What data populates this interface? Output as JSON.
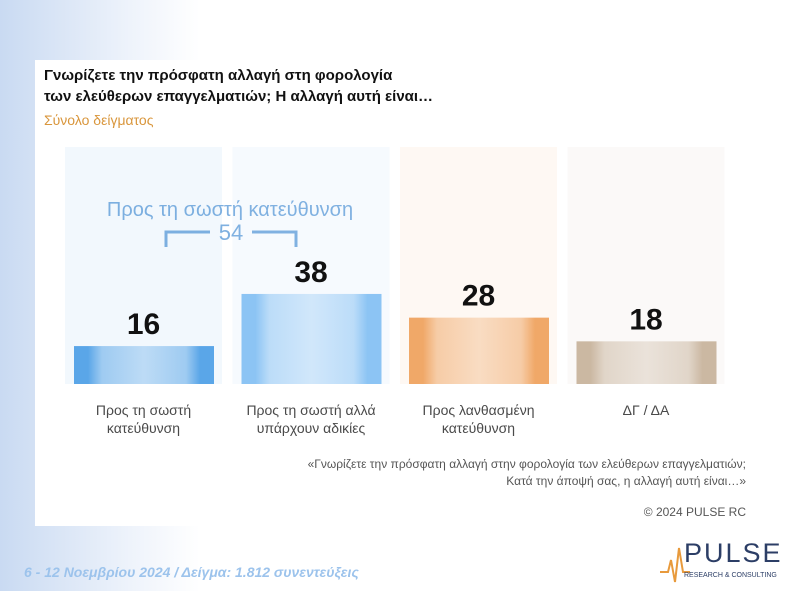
{
  "chart_data": {
    "type": "bar",
    "title": [
      "Γνωρίζετε την πρόσφατη αλλαγή στη φορολογία",
      "των ελεύθερων επαγγελματιών; Η αλλαγή αυτή είναι…"
    ],
    "subtitle": "Σύνολο δείγματος",
    "categories": [
      "Προς τη σωστή κατεύθυνση",
      "Προς τη σωστή αλλά υπάρχουν αδικίες",
      "Προς λανθασμένη κατεύθυνση",
      "ΔΓ / ΔΑ"
    ],
    "values": [
      16,
      38,
      28,
      18
    ],
    "colors": [
      "#5aa6e8",
      "#8cc4f4",
      "#f0a868",
      "#cbb8a2"
    ],
    "ylim": [
      0,
      100
    ],
    "annotation": {
      "text": "Προς τη σωστή κατεύθυνση",
      "value": 54
    },
    "note": [
      "«Γνωρίζετε την πρόσφατη αλλαγή στην φορολογία των ελεύθερων επαγγελματιών;",
      "Κατά την άποψή σας, η αλλαγή αυτή είναι…»"
    ],
    "copyright": "© 2024 PULSE RC",
    "footer": "6 - 12  Νοεμβρίου  2024  /  Δείγμα:  1.812 συνεντεύξεις",
    "logo": {
      "name": "PULSE",
      "tagline": "RESEARCH & CONSULTING"
    }
  }
}
